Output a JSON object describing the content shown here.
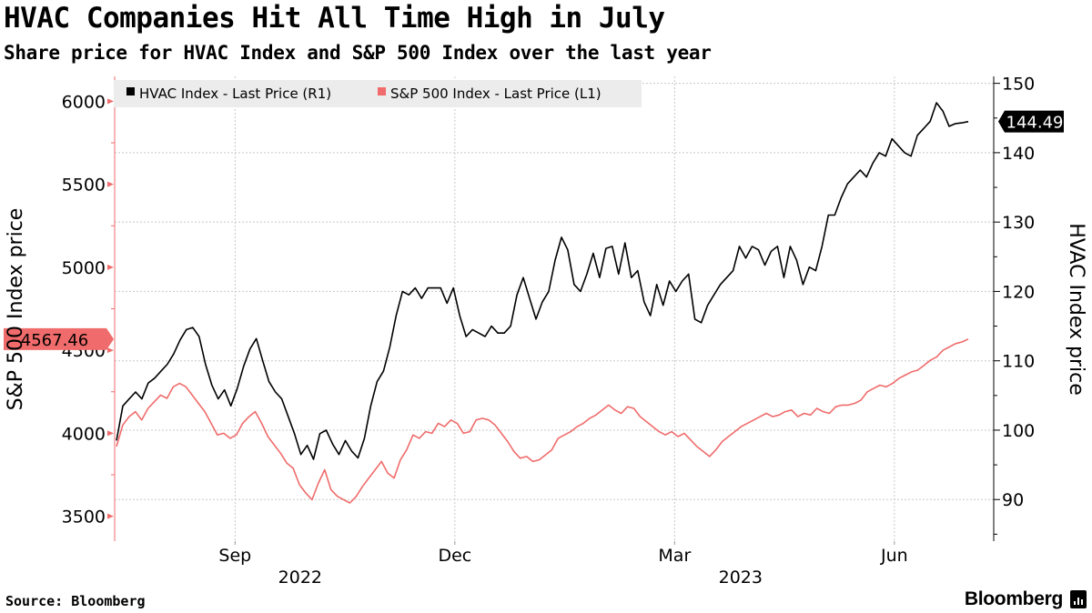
{
  "title": "HVAC Companies Hit All Time High in July",
  "subtitle": "Share price for HVAC Index and S&P 500 Index over the last year",
  "source": "Source: Bloomberg",
  "brand": "Bloomberg",
  "colors": {
    "hvac": "#000000",
    "spx": "#f06b6b",
    "grid": "#c8c8c8",
    "legend_bg": "#ececec"
  },
  "chart_data": {
    "type": "line",
    "title": "HVAC Companies Hit All Time High in July",
    "subtitle": "Share price for HVAC Index and S&P 500 Index over the last year",
    "xlabel": "",
    "left_axis": {
      "label": "S&P 500 Index price",
      "ylim": [
        3350,
        6150
      ],
      "ticks": [
        3500,
        4000,
        4500,
        5000,
        5500,
        6000
      ]
    },
    "right_axis": {
      "label": "HVAC Index price",
      "ylim": [
        84,
        151
      ],
      "ticks": [
        90,
        100,
        110,
        120,
        130,
        140,
        150
      ]
    },
    "x_ticks": [
      "Sep",
      "Dec",
      "Mar",
      "Jun"
    ],
    "year_labels": [
      "2022",
      "2023"
    ],
    "legend": [
      "HVAC Index - Last Price (R1)",
      "S&P 500 Index - Last Price (L1)"
    ],
    "last_values": {
      "hvac": "144.49",
      "spx": "4567.46"
    },
    "series": [
      {
        "name": "HVAC Index - Last Price (R1)",
        "axis": "right",
        "values": [
          98.5,
          103.5,
          104.5,
          105.5,
          104.5,
          106.8,
          107.5,
          108.5,
          109.5,
          111,
          113,
          114.5,
          114.8,
          113.5,
          109.5,
          106.5,
          104.5,
          105.8,
          103.5,
          106,
          109.2,
          111.7,
          113.2,
          110,
          107,
          105.5,
          104.5,
          102,
          99.5,
          96.5,
          97.8,
          95.8,
          99.5,
          100,
          98,
          96.5,
          98.5,
          97,
          96,
          98.8,
          103.5,
          107,
          108.5,
          112,
          116.5,
          120,
          119.5,
          120.5,
          119,
          120.5,
          120.5,
          120.5,
          118.3,
          120.5,
          116.5,
          113.5,
          114.5,
          114,
          113.5,
          115,
          114,
          114,
          115,
          119.5,
          122,
          119,
          116,
          118.5,
          120,
          124.5,
          127.8,
          126,
          121,
          120,
          122.5,
          125.5,
          122,
          126.2,
          126.5,
          122.5,
          127,
          122,
          123,
          118.5,
          116.5,
          121,
          118,
          121.5,
          120,
          121.5,
          122.5,
          116,
          115.5,
          118,
          119.5,
          121,
          122,
          123,
          126.5,
          124.8,
          126.5,
          126,
          123.8,
          125.8,
          126.5,
          122,
          126.5,
          124.5,
          121,
          123.5,
          123,
          126.5,
          131,
          131,
          133.5,
          135.5,
          136.5,
          137.5,
          136.5,
          138.5,
          140,
          139.5,
          142,
          141,
          140,
          139.5,
          142.5,
          143.5,
          144.5,
          147.2,
          146,
          143.8,
          144.2,
          144.3,
          144.49
        ]
      },
      {
        "name": "S&P 500 Index - Last Price (L1)",
        "axis": "left",
        "values": [
          3920,
          4050,
          4100,
          4130,
          4080,
          4150,
          4190,
          4230,
          4210,
          4280,
          4300,
          4280,
          4230,
          4180,
          4130,
          4060,
          3990,
          4000,
          3970,
          3990,
          4060,
          4100,
          4130,
          4060,
          3980,
          3930,
          3880,
          3820,
          3790,
          3690,
          3640,
          3600,
          3700,
          3780,
          3660,
          3620,
          3600,
          3580,
          3620,
          3680,
          3730,
          3780,
          3830,
          3760,
          3730,
          3840,
          3900,
          3990,
          3970,
          4010,
          4000,
          4060,
          4040,
          4080,
          4060,
          4000,
          4010,
          4080,
          4090,
          4080,
          4050,
          4000,
          3950,
          3890,
          3850,
          3860,
          3830,
          3840,
          3870,
          3900,
          3970,
          3990,
          4010,
          4040,
          4060,
          4090,
          4110,
          4140,
          4170,
          4140,
          4120,
          4160,
          4150,
          4100,
          4070,
          4040,
          4010,
          3990,
          4010,
          3980,
          4000,
          3960,
          3920,
          3890,
          3860,
          3900,
          3950,
          3980,
          4010,
          4040,
          4060,
          4080,
          4100,
          4120,
          4100,
          4110,
          4130,
          4140,
          4100,
          4120,
          4110,
          4150,
          4130,
          4120,
          4160,
          4170,
          4170,
          4180,
          4200,
          4250,
          4270,
          4290,
          4280,
          4300,
          4330,
          4350,
          4370,
          4380,
          4410,
          4440,
          4460,
          4500,
          4520,
          4540,
          4550,
          4567.46
        ]
      }
    ]
  }
}
